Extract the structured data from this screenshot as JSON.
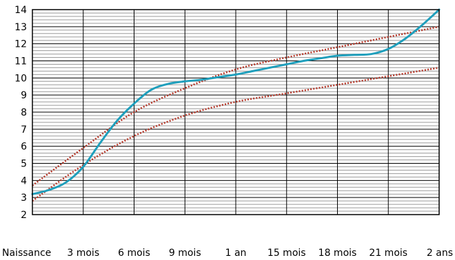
{
  "chart_data": {
    "type": "line",
    "title": "",
    "xlabel": "",
    "ylabel": "",
    "grid": true,
    "x_ticks": [
      "Naissance",
      "3 mois",
      "6 mois",
      "9 mois",
      "1 an",
      "15 mois",
      "18 mois",
      "21 mois",
      "2 ans"
    ],
    "x_tick_months": [
      0,
      3,
      6,
      9,
      12,
      15,
      18,
      21,
      24
    ],
    "xlim": [
      0,
      24
    ],
    "ylim": [
      2,
      14
    ],
    "y_ticks": [
      2,
      3,
      4,
      5,
      6,
      7,
      8,
      9,
      10,
      11,
      12,
      13,
      14
    ],
    "y_minor_step": 0.2,
    "series": [
      {
        "role": "measurement",
        "style": "solid",
        "color": "#1f9fbc",
        "x": [
          0,
          1,
          2,
          3,
          4,
          5,
          6,
          7,
          8,
          9,
          10,
          11,
          12,
          13,
          14,
          15,
          16,
          17,
          18,
          19,
          20,
          21,
          22,
          23,
          24
        ],
        "y": [
          3.2,
          3.45,
          3.9,
          4.8,
          6.2,
          7.5,
          8.5,
          9.3,
          9.65,
          9.8,
          9.9,
          10.05,
          10.2,
          10.4,
          10.6,
          10.8,
          11.0,
          11.15,
          11.3,
          11.35,
          11.4,
          11.7,
          12.3,
          13.1,
          14.0
        ]
      },
      {
        "role": "reference-upper",
        "style": "dotted",
        "color": "#b5382a",
        "x": [
          0,
          3,
          6,
          9,
          12,
          15,
          18,
          21,
          24
        ],
        "y": [
          3.7,
          5.9,
          8.0,
          9.4,
          10.5,
          11.2,
          11.8,
          12.4,
          13.0
        ]
      },
      {
        "role": "reference-lower",
        "style": "dotted",
        "color": "#b5382a",
        "x": [
          0,
          3,
          6,
          9,
          12,
          15,
          18,
          21,
          24
        ],
        "y": [
          2.8,
          4.9,
          6.6,
          7.8,
          8.6,
          9.1,
          9.6,
          10.1,
          10.6
        ]
      }
    ]
  }
}
